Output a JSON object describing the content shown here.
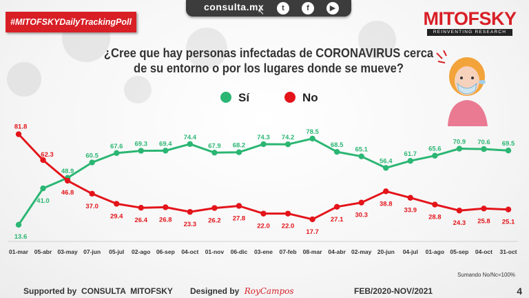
{
  "hashtag": "#MITOFSKYDailyTrackingPoll",
  "topbar": {
    "site": "consulta.mx",
    "social_icons": [
      "twitter-icon",
      "facebook-icon",
      "youtube-icon"
    ]
  },
  "brand": {
    "name": "MITOFSKY",
    "tagline": "REINVENTING RESEARCH"
  },
  "question": "¿Cree que hay personas infectadas de CORONAVIRUS cerca de su entorno o por los lugares donde se mueve?",
  "colors": {
    "si": "#2bb673",
    "no": "#e3141a",
    "brand_red": "#d81f26"
  },
  "note": "Sumando No/Nc=100%",
  "footer": {
    "supported": "Supported by  CONSULTA  MITOFSKY",
    "designed": "Designed by",
    "designer": "RoyCampos",
    "period": "FEB/2020-NOV/2021",
    "page": "4"
  },
  "chart_data": {
    "type": "line",
    "title": "¿Cree que hay personas infectadas de CORONAVIRUS cerca de su entorno o por los lugares donde se mueve?",
    "legend_position": "top-center",
    "grid": false,
    "ylim": [
      0,
      100
    ],
    "categories": [
      "01-mar",
      "05-abr",
      "03-may",
      "07-jun",
      "05-jul",
      "02-ago",
      "06-sep",
      "04-oct",
      "01-nov",
      "06-dic",
      "03-ene",
      "07-feb",
      "08-mar",
      "04-abr",
      "02-may",
      "20-jun",
      "04-jul",
      "01-ago",
      "05-sep",
      "04-oct",
      "31-oct"
    ],
    "series": [
      {
        "name": "Sí",
        "color": "#2bb673",
        "values": [
          13.6,
          41.0,
          48.9,
          60.5,
          67.6,
          69.3,
          69.4,
          74.4,
          67.9,
          68.2,
          74.3,
          74.2,
          78.5,
          68.5,
          65.1,
          56.4,
          61.7,
          65.6,
          70.9,
          70.6,
          69.5
        ]
      },
      {
        "name": "No",
        "color": "#e3141a",
        "values": [
          81.8,
          62.3,
          46.8,
          37.0,
          29.4,
          26.4,
          26.8,
          23.3,
          26.2,
          27.8,
          22.0,
          22.0,
          17.7,
          27.1,
          30.3,
          38.8,
          33.9,
          28.8,
          24.3,
          25.8,
          25.1
        ]
      }
    ]
  }
}
